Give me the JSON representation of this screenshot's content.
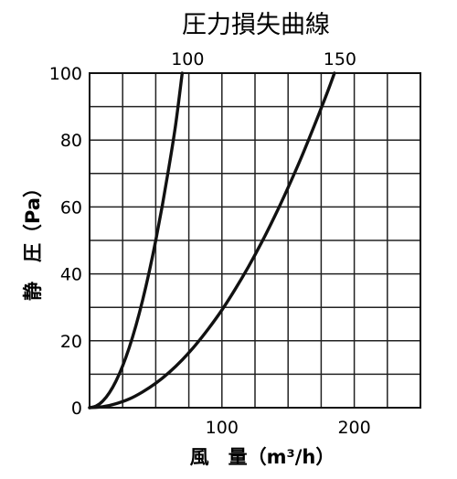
{
  "chart_data": {
    "type": "line",
    "title": "圧力損失曲線",
    "xlabel": "風　量（m³/h）",
    "ylabel": "静　圧（Pa）",
    "xlim": [
      0,
      250
    ],
    "ylim": [
      0,
      100
    ],
    "x_ticks": [
      {
        "value": 100,
        "label": "100"
      },
      {
        "value": 200,
        "label": "200"
      }
    ],
    "y_ticks": [
      {
        "value": 0,
        "label": "0"
      },
      {
        "value": 20,
        "label": "20"
      },
      {
        "value": 40,
        "label": "40"
      },
      {
        "value": 60,
        "label": "60"
      },
      {
        "value": 80,
        "label": "80"
      },
      {
        "value": 100,
        "label": "100"
      }
    ],
    "grid": true,
    "grid_step_x": 25,
    "grid_step_y": 10,
    "series": [
      {
        "name": "100",
        "x": [
          0,
          5,
          10,
          15,
          20,
          25,
          30,
          35,
          40,
          45,
          50,
          55,
          60,
          65,
          70
        ],
        "y": [
          0,
          0.5,
          2,
          4.5,
          8,
          12.5,
          18,
          24.5,
          32,
          40.5,
          50,
          60.5,
          72,
          84.5,
          100
        ]
      },
      {
        "name": "150",
        "x": [
          0,
          10,
          20,
          30,
          40,
          50,
          60,
          70,
          80,
          90,
          100,
          110,
          120,
          130,
          140,
          150,
          160,
          170,
          175,
          180,
          185
        ],
        "y": [
          0,
          0.3,
          1.2,
          2.6,
          4.7,
          7.3,
          10.5,
          14.3,
          18.7,
          23.7,
          29.2,
          35.4,
          42.1,
          49.4,
          57.3,
          65.8,
          74.8,
          84.5,
          89.5,
          94.6,
          100
        ]
      }
    ]
  }
}
